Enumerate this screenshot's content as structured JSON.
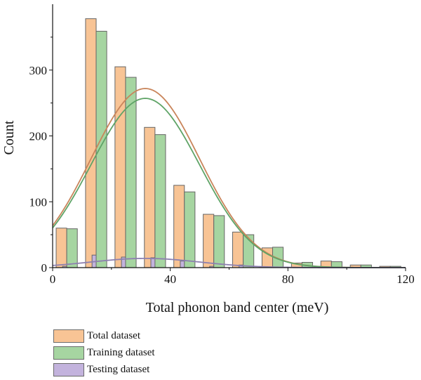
{
  "chart_data": {
    "type": "bar",
    "title": "",
    "xlabel": "Total phonon band center (meV)",
    "ylabel": "Count",
    "xlim": [
      0,
      120
    ],
    "ylim": [
      0,
      400
    ],
    "xticks": [
      "0",
      "40",
      "80",
      "120"
    ],
    "yticks": [
      "0",
      "100",
      "200",
      "300"
    ],
    "bin_width": 10,
    "grid": false,
    "legend_position": "bottom-left",
    "series": [
      {
        "name": "Total dataset",
        "color": "#f8c495",
        "bin_starts": [
          0,
          10,
          20,
          30,
          40,
          50,
          60,
          70,
          80,
          90,
          100,
          110
        ],
        "values": [
          60,
          378,
          305,
          213,
          125,
          81,
          54,
          30,
          7,
          10,
          4,
          2
        ]
      },
      {
        "name": "Training dataset",
        "color": "#a6d5a1",
        "bin_starts": [
          0,
          10,
          20,
          30,
          40,
          50,
          60,
          70,
          80,
          90,
          100,
          110
        ],
        "values": [
          59,
          359,
          289,
          202,
          115,
          79,
          50,
          31,
          8,
          9,
          4,
          2
        ]
      },
      {
        "name": "Testing dataset",
        "color": "#c3b3dd",
        "bin_starts": [
          0,
          10,
          20,
          30,
          40,
          50,
          60,
          70,
          80,
          90,
          100,
          110
        ],
        "values": [
          2,
          19,
          16,
          15,
          10,
          2,
          4,
          0,
          0,
          0,
          0,
          0
        ]
      }
    ],
    "fits": [
      {
        "series": "Total dataset",
        "color": "#c9855b",
        "mean": 31.5,
        "sd": 18.5,
        "peak": 272
      },
      {
        "series": "Training dataset",
        "color": "#5fa467",
        "mean": 31.5,
        "sd": 18.5,
        "peak": 257
      },
      {
        "series": "Testing dataset",
        "color": "#8d80b0",
        "mean": 31.5,
        "sd": 18.5,
        "peak": 14
      }
    ]
  }
}
